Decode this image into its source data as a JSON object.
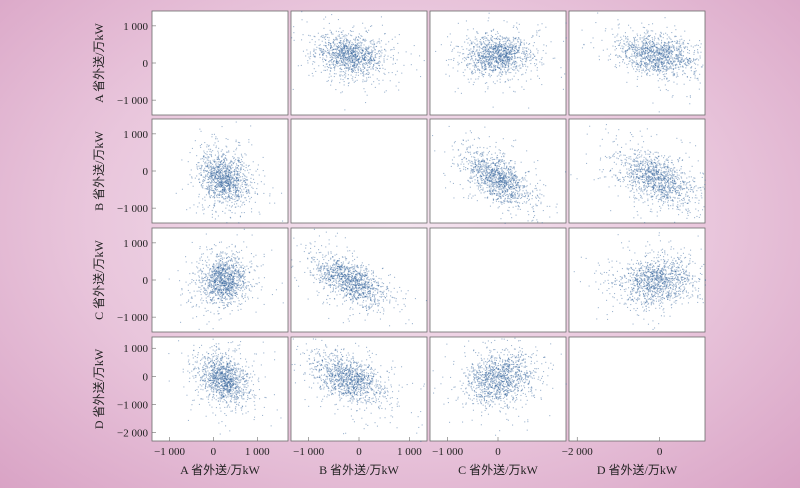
{
  "chart_data": {
    "type": "scatter",
    "variables": [
      "A",
      "B",
      "C",
      "D"
    ],
    "row_labels": [
      "A 省外送/万kW",
      "B 省外送/万kW",
      "C 省外送/万kW",
      "D 省外送/万kW"
    ],
    "col_labels": [
      "A 省外送/万kW",
      "B 省外送/万kW",
      "C 省外送/万kW",
      "D 省外送/万kW"
    ],
    "row_yticks": [
      {
        "values": [
          -1000,
          0,
          1000
        ],
        "labels": [
          "−1 000",
          "0",
          "1 000"
        ]
      },
      {
        "values": [
          -1000,
          0,
          1000
        ],
        "labels": [
          "−1 000",
          "0",
          "1 000"
        ]
      },
      {
        "values": [
          -1000,
          0,
          1000
        ],
        "labels": [
          "−1 000",
          "0",
          "1 000"
        ]
      },
      {
        "values": [
          -2000,
          -1000,
          0,
          1000
        ],
        "labels": [
          "−2 000",
          "−1 000",
          "0",
          "1 000"
        ]
      }
    ],
    "col_xticks": [
      {
        "values": [
          -1000,
          0,
          1000
        ],
        "labels": [
          "−1 000",
          "0",
          "1 000"
        ]
      },
      {
        "values": [
          -1000,
          0,
          1000
        ],
        "labels": [
          "−1 000",
          "0",
          "1 000"
        ]
      },
      {
        "values": [
          -1000,
          0
        ],
        "labels": [
          "−1 000",
          "0"
        ]
      },
      {
        "values": [
          -2000,
          0
        ],
        "labels": [
          "−2 000",
          "0"
        ]
      }
    ],
    "row_ylim": [
      [
        -1400,
        1400
      ],
      [
        -1400,
        1400
      ],
      [
        -1400,
        1400
      ],
      [
        -2300,
        1400
      ]
    ],
    "col_xlim": [
      [
        -1400,
        1700
      ],
      [
        -1350,
        1350
      ],
      [
        -1350,
        1350
      ],
      [
        -2200,
        1100
      ]
    ],
    "variable_stats": {
      "A": {
        "mean": 220,
        "std": 260
      },
      "B": {
        "mean": -200,
        "std": 330
      },
      "C": {
        "mean": 0,
        "std": 300
      },
      "D": {
        "mean": -80,
        "std": 420
      }
    },
    "correlations": {
      "AB": -0.2,
      "AC": 0.05,
      "AD": -0.3,
      "BC": -0.55,
      "BD": -0.45,
      "CD": 0.15
    },
    "points_per_panel": 1200,
    "diagonal": "empty",
    "point_color": "#2e5f9a"
  }
}
